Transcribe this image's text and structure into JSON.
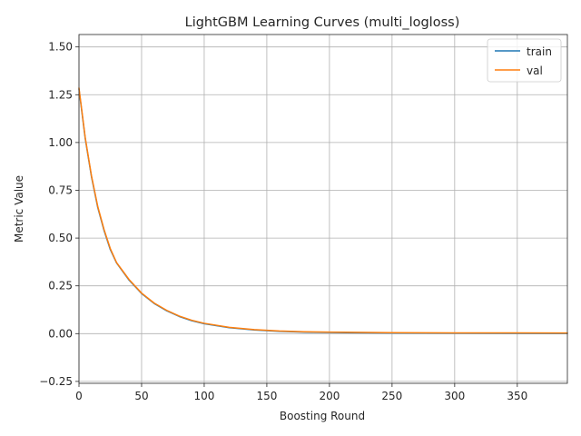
{
  "chart_data": {
    "type": "line",
    "title": "LightGBM Learning Curves (multi_logloss)",
    "xlabel": "Boosting Round",
    "ylabel": "Metric Value",
    "xlim": [
      0,
      390
    ],
    "ylim": [
      -0.26,
      1.565
    ],
    "xticks": [
      0,
      50,
      100,
      150,
      200,
      250,
      300,
      350
    ],
    "yticks": [
      -0.25,
      0.0,
      0.25,
      0.5,
      0.75,
      1.0,
      1.25,
      1.5
    ],
    "ytick_labels": [
      "−0.25",
      "0.00",
      "0.25",
      "0.50",
      "0.75",
      "1.00",
      "1.25",
      "1.50"
    ],
    "grid": true,
    "legend_position": "top-right",
    "series": [
      {
        "name": "train",
        "color": "#1f77b4",
        "x": [
          0,
          5,
          10,
          15,
          20,
          25,
          30,
          40,
          50,
          60,
          70,
          80,
          90,
          100,
          120,
          140,
          160,
          180,
          200,
          250,
          300,
          350,
          390
        ],
        "y": [
          1.28,
          1.02,
          0.82,
          0.66,
          0.54,
          0.44,
          0.37,
          0.28,
          0.21,
          0.158,
          0.12,
          0.09,
          0.068,
          0.052,
          0.031,
          0.019,
          0.012,
          0.008,
          0.006,
          0.003,
          0.002,
          0.0015,
          0.001
        ]
      },
      {
        "name": "val",
        "color": "#ff7f0e",
        "x": [
          0,
          5,
          10,
          15,
          20,
          25,
          30,
          40,
          50,
          60,
          70,
          80,
          90,
          100,
          120,
          140,
          160,
          180,
          200,
          250,
          300,
          350,
          390
        ],
        "y": [
          1.285,
          1.025,
          0.825,
          0.665,
          0.545,
          0.445,
          0.372,
          0.283,
          0.212,
          0.16,
          0.122,
          0.092,
          0.07,
          0.054,
          0.033,
          0.021,
          0.014,
          0.01,
          0.008,
          0.005,
          0.004,
          0.0035,
          0.003
        ]
      }
    ]
  }
}
